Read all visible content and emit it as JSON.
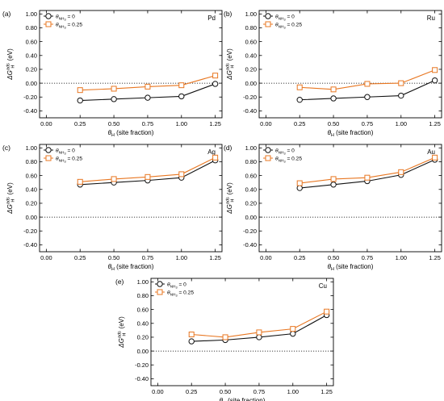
{
  "figure": {
    "panel_count": 5
  },
  "styles": {
    "series_colors": [
      "#111111",
      "#e87722"
    ],
    "marker_shapes": [
      "circle",
      "square"
    ],
    "zero_line": "dotted"
  },
  "shared": {
    "xlabel_main": "θ",
    "xlabel_sub": "H",
    "xlabel_rest": " (site fraction)",
    "ylabel_delta": "ΔG",
    "ylabel_sup": "ads",
    "ylabel_sub": "H",
    "ylabel_unit": " (eV)",
    "legend": [
      {
        "theta": "θ",
        "sub": "NH",
        "subsub": "3",
        "rest": " = 0"
      },
      {
        "theta": "θ",
        "sub": "NH",
        "subsub": "3",
        "rest": " = 0.25"
      }
    ],
    "xticks": [
      "0.00",
      "0.25",
      "0.50",
      "0.75",
      "1.00",
      "1.25"
    ],
    "yticks": [
      "-0.40",
      "-0.20",
      "0.00",
      "0.20",
      "0.40",
      "0.60",
      "0.80",
      "1.00"
    ]
  },
  "chart_data": [
    {
      "panel": "(a)",
      "metal": "Pd",
      "type": "line",
      "xlim": [
        -0.05,
        1.3
      ],
      "ylim": [
        -0.5,
        1.05
      ],
      "x": [
        0.25,
        0.5,
        0.75,
        1.0,
        1.25
      ],
      "series": [
        {
          "values": [
            -0.25,
            -0.23,
            -0.21,
            -0.19,
            -0.01
          ]
        },
        {
          "values": [
            -0.1,
            -0.08,
            -0.05,
            -0.03,
            0.11
          ]
        }
      ]
    },
    {
      "panel": "(b)",
      "metal": "Ru",
      "type": "line",
      "xlim": [
        -0.05,
        1.3
      ],
      "ylim": [
        -0.5,
        1.05
      ],
      "x": [
        0.25,
        0.5,
        0.75,
        1.0,
        1.25
      ],
      "series": [
        {
          "values": [
            -0.24,
            -0.22,
            -0.2,
            -0.18,
            0.04
          ]
        },
        {
          "values": [
            -0.06,
            -0.09,
            -0.01,
            0.0,
            0.19
          ]
        }
      ]
    },
    {
      "panel": "(c)",
      "metal": "Ag",
      "type": "line",
      "xlim": [
        -0.05,
        1.3
      ],
      "ylim": [
        -0.5,
        1.05
      ],
      "x": [
        0.25,
        0.5,
        0.75,
        1.0,
        1.25
      ],
      "series": [
        {
          "values": [
            0.47,
            0.5,
            0.53,
            0.57,
            0.82
          ]
        },
        {
          "values": [
            0.51,
            0.55,
            0.58,
            0.62,
            0.86
          ]
        }
      ]
    },
    {
      "panel": "(d)",
      "metal": "Au",
      "type": "line",
      "xlim": [
        -0.05,
        1.3
      ],
      "ylim": [
        -0.5,
        1.05
      ],
      "x": [
        0.25,
        0.5,
        0.75,
        1.0,
        1.25
      ],
      "series": [
        {
          "values": [
            0.42,
            0.47,
            0.52,
            0.61,
            0.83
          ]
        },
        {
          "values": [
            0.49,
            0.55,
            0.57,
            0.65,
            0.86
          ]
        }
      ]
    },
    {
      "panel": "(e)",
      "metal": "Cu",
      "type": "line",
      "xlim": [
        -0.05,
        1.3
      ],
      "ylim": [
        -0.5,
        1.05
      ],
      "x": [
        0.25,
        0.5,
        0.75,
        1.0,
        1.25
      ],
      "series": [
        {
          "values": [
            0.14,
            0.16,
            0.2,
            0.25,
            0.52
          ]
        },
        {
          "values": [
            0.24,
            0.2,
            0.27,
            0.32,
            0.57
          ]
        }
      ]
    }
  ]
}
